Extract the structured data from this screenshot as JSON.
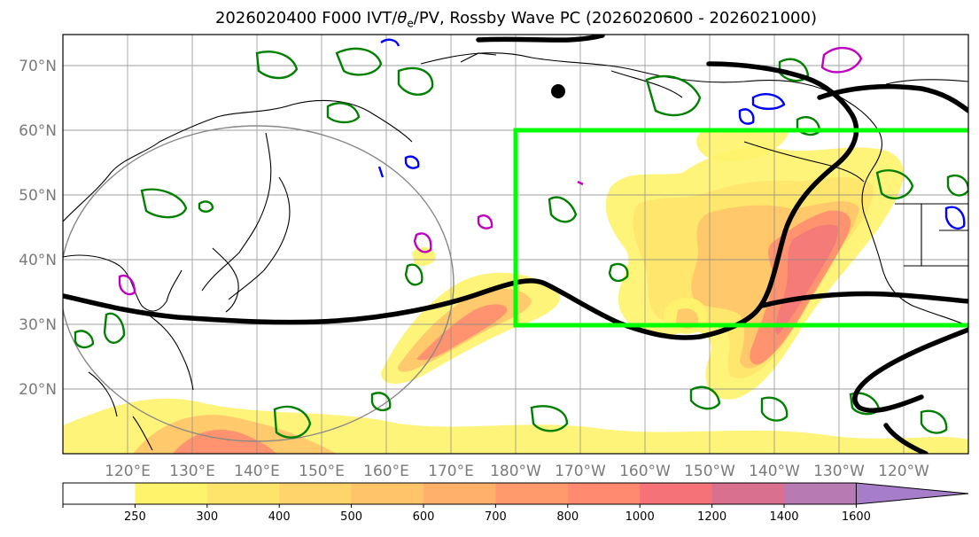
{
  "title_prefix": "2026020400 F000 IVT/",
  "title_theta": "θ",
  "title_sub": "e",
  "title_suffix": "/PV, Rossby Wave PC (2026020600 - 2026021000)",
  "lat_labels": [
    "20°N",
    "30°N",
    "40°N",
    "50°N",
    "60°N",
    "70°N"
  ],
  "lon_labels": [
    "120°E",
    "130°E",
    "140°E",
    "150°E",
    "160°E",
    "170°E",
    "180°W",
    "170°W",
    "160°W",
    "150°W",
    "140°W",
    "130°W",
    "120°W"
  ],
  "colorbar": {
    "labels": [
      "250",
      "300",
      "400",
      "500",
      "600",
      "700",
      "800",
      "1000",
      "1200",
      "1400",
      "1600"
    ],
    "colors": [
      "#ffffff",
      "#fff36b",
      "#ffe46b",
      "#ffd46a",
      "#ffc46a",
      "#ffb06a",
      "#ff9a6c",
      "#ff8a70",
      "#f47278",
      "#d9708f",
      "#b77ab3",
      "#a57dc8"
    ]
  },
  "colors": {
    "ivt_light": "#fff36b",
    "ivt_mid": "#ffc46a",
    "ivt_core": "#ff8a70",
    "ivt_peak": "#f0707a",
    "rossby_box": "#00ff00",
    "theta_e_line": "#000000",
    "pv_positive": "#008000",
    "pv_negative": "#0000ff",
    "pv_extreme": "#c000c0",
    "grid": "#888888"
  }
}
